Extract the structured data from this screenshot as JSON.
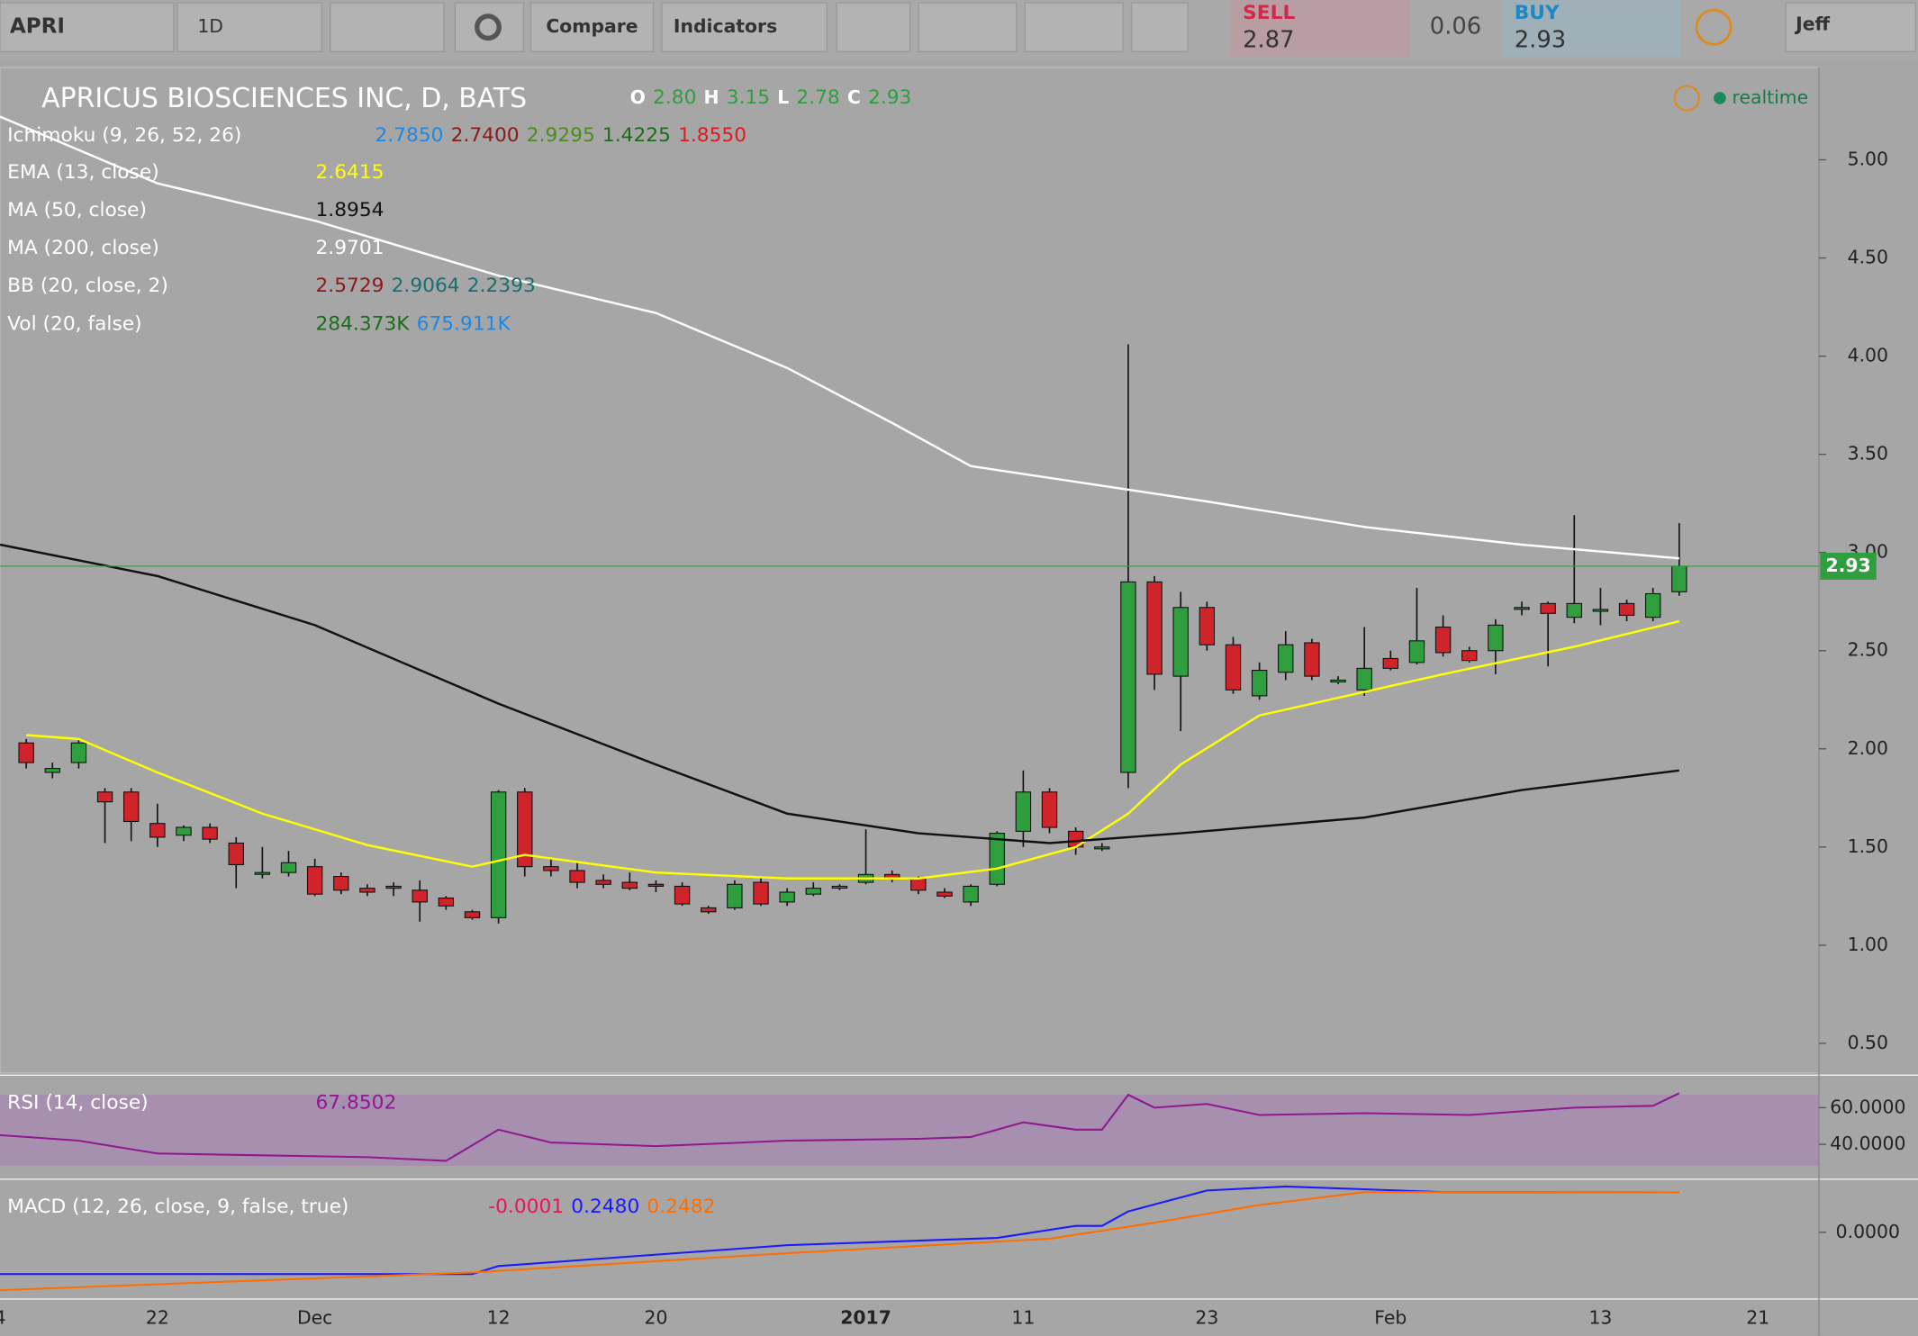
{
  "toolbar": {
    "symbol": "APRI",
    "interval": "1D",
    "compare": "Compare",
    "indicators": "Indicators",
    "sell_label": "SELL",
    "sell_price": "2.87",
    "spread": "0.06",
    "buy_label": "BUY",
    "buy_price": "2.93",
    "user": "Jeff",
    "status": "realtime"
  },
  "chart_data": [
    {
      "type": "candlestick",
      "title": "APRICUS BIOSCIENCES INC, D, BATS",
      "ohlc": [
        {
          "label": "O",
          "value": "2.80"
        },
        {
          "label": "H",
          "value": "3.15"
        },
        {
          "label": "L",
          "value": "2.78"
        },
        {
          "label": "C",
          "value": "2.93"
        }
      ],
      "categories": [
        "4",
        null,
        null,
        null,
        null,
        null,
        "22",
        null,
        null,
        null,
        null,
        null,
        "Dec",
        null,
        null,
        null,
        null,
        null,
        null,
        "12",
        null,
        null,
        null,
        null,
        null,
        "20",
        null,
        null,
        null,
        null,
        null,
        null,
        null,
        "2017",
        null,
        null,
        null,
        null,
        null,
        "11",
        null,
        null,
        null,
        null,
        null,
        null,
        "23",
        null,
        null,
        null,
        null,
        null,
        null,
        "Feb",
        null,
        null,
        null,
        null,
        null,
        null,
        null,
        "13",
        null,
        null,
        null,
        null,
        null,
        "21"
      ],
      "open": [
        null,
        2.03,
        1.88,
        1.93,
        1.78,
        1.78,
        1.62,
        1.56,
        1.6,
        1.52,
        1.37,
        1.37,
        1.4,
        1.35,
        1.29,
        1.3,
        1.28,
        1.24,
        1.17,
        1.14,
        1.78,
        1.4,
        1.38,
        1.33,
        1.32,
        1.31,
        1.3,
        1.19,
        1.19,
        1.32,
        1.22,
        1.26,
        1.3,
        1.32,
        1.36,
        1.34,
        1.27,
        1.22,
        1.31,
        1.58,
        1.78,
        1.58,
        1.5,
        1.88,
        2.85,
        2.37,
        2.72,
        2.53,
        2.27,
        2.39,
        2.54,
        2.35,
        2.3,
        2.46,
        2.44,
        2.62,
        2.5,
        2.5,
        2.72,
        2.74,
        2.67,
        2.71,
        2.74,
        2.67,
        2.8,
        null,
        null,
        null
      ],
      "high": [
        null,
        2.05,
        1.93,
        2.05,
        1.8,
        1.8,
        1.72,
        1.61,
        1.62,
        1.55,
        1.5,
        1.48,
        1.44,
        1.37,
        1.31,
        1.32,
        1.33,
        1.25,
        1.18,
        1.79,
        1.8,
        1.44,
        1.42,
        1.36,
        1.37,
        1.33,
        1.32,
        1.2,
        1.33,
        1.35,
        1.29,
        1.32,
        1.31,
        1.59,
        1.38,
        1.35,
        1.29,
        1.31,
        1.58,
        1.89,
        1.8,
        1.6,
        1.52,
        4.06,
        2.88,
        2.8,
        2.75,
        2.57,
        2.44,
        2.6,
        2.56,
        2.37,
        2.62,
        2.5,
        2.82,
        2.68,
        2.52,
        2.66,
        2.75,
        2.75,
        3.19,
        2.82,
        2.76,
        2.82,
        3.15,
        null,
        null,
        null
      ],
      "low": [
        null,
        1.9,
        1.85,
        1.9,
        1.52,
        1.53,
        1.5,
        1.53,
        1.52,
        1.29,
        1.34,
        1.35,
        1.25,
        1.26,
        1.25,
        1.25,
        1.12,
        1.18,
        1.13,
        1.11,
        1.35,
        1.35,
        1.29,
        1.29,
        1.28,
        1.27,
        1.2,
        1.16,
        1.18,
        1.2,
        1.2,
        1.25,
        1.28,
        1.31,
        1.32,
        1.26,
        1.24,
        1.2,
        1.3,
        1.5,
        1.57,
        1.46,
        1.48,
        1.8,
        2.3,
        2.09,
        2.5,
        2.28,
        2.25,
        2.35,
        2.35,
        2.33,
        2.27,
        2.4,
        2.43,
        2.47,
        2.44,
        2.38,
        2.68,
        2.42,
        2.64,
        2.63,
        2.65,
        2.65,
        2.78,
        null,
        null,
        null
      ],
      "close": [
        null,
        1.93,
        1.9,
        2.03,
        1.73,
        1.63,
        1.55,
        1.6,
        1.54,
        1.41,
        1.37,
        1.42,
        1.26,
        1.28,
        1.27,
        1.29,
        1.22,
        1.2,
        1.14,
        1.78,
        1.4,
        1.38,
        1.32,
        1.31,
        1.29,
        1.3,
        1.21,
        1.17,
        1.31,
        1.21,
        1.27,
        1.29,
        1.3,
        1.36,
        1.34,
        1.28,
        1.25,
        1.3,
        1.57,
        1.78,
        1.6,
        1.5,
        1.5,
        2.85,
        2.38,
        2.72,
        2.53,
        2.3,
        2.4,
        2.53,
        2.37,
        2.35,
        2.41,
        2.41,
        2.55,
        2.49,
        2.45,
        2.63,
        2.72,
        2.69,
        2.74,
        2.71,
        2.68,
        2.79,
        2.93,
        null,
        null,
        null
      ],
      "up_color": "#2e9e3e",
      "down_color": "#d0232a",
      "ylim": [
        0.35,
        5.47
      ],
      "yticks": [
        {
          "value": 0.5,
          "label": "0.50"
        },
        {
          "value": 1,
          "label": "1.00"
        },
        {
          "value": 1.5,
          "label": "1.50"
        },
        {
          "value": 2,
          "label": "2.00"
        },
        {
          "value": 2.5,
          "label": "2.50"
        },
        {
          "value": 3,
          "label": "3.00"
        },
        {
          "value": 3.5,
          "label": "3.50"
        },
        {
          "value": 4,
          "label": "4.00"
        },
        {
          "value": 4.5,
          "label": "4.50"
        },
        {
          "value": 5,
          "label": "5.00"
        }
      ],
      "last_price": 2.93,
      "last_price_color": "#2e9e3e",
      "indicators": [
        {
          "name": "Ichimoku (9, 26, 52, 26)",
          "readouts": [
            "2.7850",
            "2.7400",
            "2.9295",
            "1.4225",
            "1.8550"
          ],
          "colors": [
            "#1e88e5",
            "#8b1a1a",
            "#4c8c1a",
            "#1a6e1a",
            "#e01a1a"
          ]
        },
        {
          "name": "EMA (13, close)",
          "readouts": [
            "2.6415"
          ],
          "colors": [
            "#ffff00"
          ],
          "x": [
            1,
            3,
            6,
            10,
            14,
            18,
            20,
            25,
            30,
            35,
            38,
            41,
            43,
            45,
            48,
            52,
            55,
            60,
            64
          ],
          "values": [
            2.07,
            2.05,
            1.88,
            1.67,
            1.51,
            1.4,
            1.46,
            1.37,
            1.34,
            1.34,
            1.39,
            1.5,
            1.67,
            1.92,
            2.17,
            2.29,
            2.38,
            2.52,
            2.65
          ]
        },
        {
          "name": "MA (50, close)",
          "readouts": [
            "1.8954"
          ],
          "colors": [
            "#111111"
          ],
          "x": [
            0,
            6,
            12,
            19,
            25,
            30,
            35,
            40,
            45,
            52,
            58,
            64
          ],
          "values": [
            3.04,
            2.88,
            2.63,
            2.23,
            1.92,
            1.67,
            1.57,
            1.52,
            1.57,
            1.65,
            1.79,
            1.89
          ]
        },
        {
          "name": "MA (200, close)",
          "readouts": [
            "2.9701"
          ],
          "colors": [
            "#ffffff"
          ],
          "x": [
            0,
            6,
            12,
            19,
            25,
            30,
            34,
            37,
            40,
            46,
            52,
            58,
            64
          ],
          "values": [
            5.22,
            4.88,
            4.69,
            4.41,
            4.22,
            3.94,
            3.66,
            3.44,
            3.38,
            3.26,
            3.13,
            3.04,
            2.97
          ]
        },
        {
          "name": "BB (20, close, 2)",
          "readouts": [
            "2.5729",
            "2.9064",
            "2.2393"
          ],
          "colors": [
            "#8b1a1a",
            "#1a6e6e",
            "#1a6e6e"
          ]
        },
        {
          "name": "Vol (20, false)",
          "readouts": [
            "284.373K",
            "675.911K"
          ],
          "colors": [
            "#1a6e1a",
            "#1e88e5"
          ]
        }
      ]
    },
    {
      "type": "line",
      "title": "RSI (14, close)",
      "readouts": [
        "67.8502"
      ],
      "colors": [
        "#8e1a8e"
      ],
      "ylim": [
        25,
        75
      ],
      "yticks": [
        {
          "value": 40,
          "label": "40.0000"
        },
        {
          "value": 60,
          "label": "60.0000"
        }
      ],
      "series": [
        {
          "color": "#8e1a8e",
          "x": [
            0,
            3,
            6,
            10,
            14,
            17,
            19,
            21,
            25,
            30,
            35,
            37,
            39,
            41,
            42,
            43,
            44,
            46,
            48,
            52,
            56,
            60,
            63,
            64
          ],
          "values": [
            45,
            42,
            35,
            34,
            33,
            31,
            48,
            41,
            39,
            42,
            43,
            44,
            52,
            48,
            48,
            67,
            60,
            62,
            56,
            57,
            56,
            60,
            61,
            67.8502
          ]
        }
      ]
    },
    {
      "type": "line",
      "title": "MACD (12, 26, close, 9, false, true)",
      "readouts": [
        "-0.0001",
        "0.2480",
        "0.2482"
      ],
      "colors": [
        "#e8155c",
        "#1a1aff",
        "#ff6d00"
      ],
      "ylim": [
        -0.4,
        0.3
      ],
      "yticks": [
        {
          "value": 0,
          "label": "0.0000"
        }
      ],
      "series": [
        {
          "color": "#1a1aff",
          "x": [
            0,
            18,
            19,
            30,
            38,
            41,
            42,
            43,
            46,
            49,
            55,
            64
          ],
          "values": [
            -0.26,
            -0.26,
            -0.21,
            -0.08,
            -0.035,
            0.04,
            0.04,
            0.13,
            0.26,
            0.285,
            0.25,
            0.248
          ]
        },
        {
          "color": "#ff6d00",
          "x": [
            0,
            18,
            30,
            40,
            44,
            48,
            52,
            64
          ],
          "values": [
            -0.36,
            -0.25,
            -0.13,
            -0.04,
            0.06,
            0.17,
            0.25,
            0.2482
          ]
        }
      ]
    }
  ]
}
